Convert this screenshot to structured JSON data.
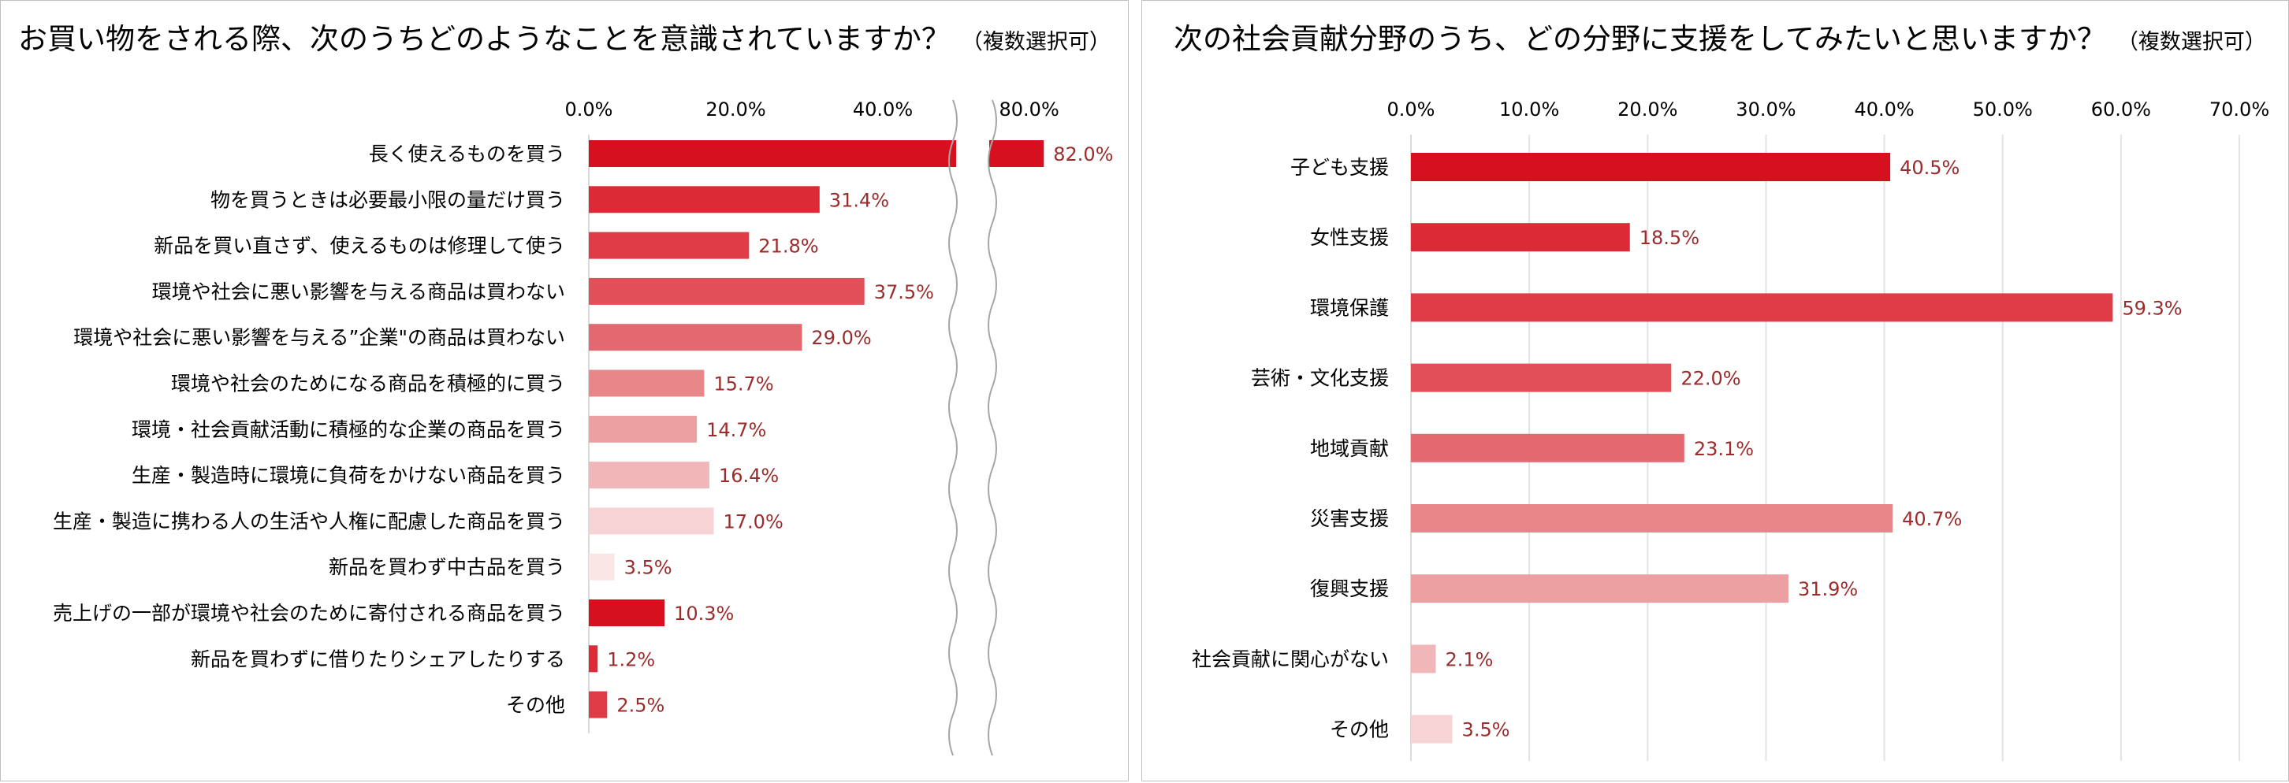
{
  "left": {
    "title": "お買い物をされる際、次のうちどのようなことを意識されていますか？",
    "note": "（複数選択可）",
    "chart_data": {
      "type": "bar",
      "orientation": "horizontal",
      "title": "お買い物をされる際、次のうちどのようなことを意識されていますか？（複数選択可）",
      "axis_break": [
        50,
        75
      ],
      "xlim": [
        0,
        90
      ],
      "ticks": [
        0,
        20,
        40,
        80
      ],
      "tick_labels": [
        "0.0%",
        "20.0%",
        "40.0%",
        "80.0%"
      ],
      "categories": [
        "長く使えるものを買う",
        "物を買うときは必要最小限の量だけ買う",
        "新品を買い直さず、使えるものは修理して使う",
        "環境や社会に悪い影響を与える商品は買わない",
        "環境や社会に悪い影響を与える”企業\"の商品は買わない",
        "環境や社会のためになる商品を積極的に買う",
        "環境・社会貢献活動に積極的な企業の商品を買う",
        "生産・製造時に環境に負荷をかけない商品を買う",
        "生産・製造に携わる人の生活や人権に配慮した商品を買う",
        "新品を買わず中古品を買う",
        "売上げの一部が環境や社会のために寄付される商品を買う",
        "新品を買わずに借りたりシェアしたりする",
        "その他"
      ],
      "values": [
        82.0,
        31.4,
        21.8,
        37.5,
        29.0,
        15.7,
        14.7,
        16.4,
        17.0,
        3.5,
        10.3,
        1.2,
        2.5
      ],
      "value_labels": [
        "82.0%",
        "31.4%",
        "21.8%",
        "37.5%",
        "29.0%",
        "15.7%",
        "14.7%",
        "16.4%",
        "17.0%",
        "3.5%",
        "10.3%",
        "1.2%",
        "2.5%"
      ],
      "colors": [
        "#d7101f",
        "#dc2a36",
        "#df3c47",
        "#e14f59",
        "#e4686f",
        "#e98689",
        "#eca0a2",
        "#f1b6b8",
        "#f6d3d4",
        "#fbe6e6",
        "#d7101f",
        "#dc2a36",
        "#df3c47"
      ]
    }
  },
  "right": {
    "title": "次の社会貢献分野のうち、どの分野に支援をしてみたいと思いますか？",
    "note": "（複数選択可）",
    "chart_data": {
      "type": "bar",
      "orientation": "horizontal",
      "title": "次の社会貢献分野のうち、どの分野に支援をしてみたいと思いますか？（複数選択可）",
      "xlim": [
        0,
        70
      ],
      "ticks": [
        0,
        10,
        20,
        30,
        40,
        50,
        60,
        70
      ],
      "tick_labels": [
        "0.0%",
        "10.0%",
        "20.0%",
        "30.0%",
        "40.0%",
        "50.0%",
        "60.0%",
        "70.0%"
      ],
      "grid": true,
      "categories": [
        "子ども支援",
        "女性支援",
        "環境保護",
        "芸術・文化支援",
        "地域貢献",
        "災害支援",
        "復興支援",
        "社会貢献に関心がない",
        "その他"
      ],
      "values": [
        40.5,
        18.5,
        59.3,
        22.0,
        23.1,
        40.7,
        31.9,
        2.1,
        3.5
      ],
      "value_labels": [
        "40.5%",
        "18.5%",
        "59.3%",
        "22.0%",
        "23.1%",
        "40.7%",
        "31.9%",
        "2.1%",
        "3.5%"
      ],
      "colors": [
        "#d7101f",
        "#dc2a36",
        "#df3c47",
        "#e14f59",
        "#e4686f",
        "#e98689",
        "#eca0a2",
        "#f1b6b8",
        "#f6d3d4"
      ]
    }
  },
  "style": {
    "label_color": "#9b2c2c",
    "text_color": "#000000",
    "grid_color": "#e3e3e3",
    "axis_color": "#d9d9d9"
  }
}
